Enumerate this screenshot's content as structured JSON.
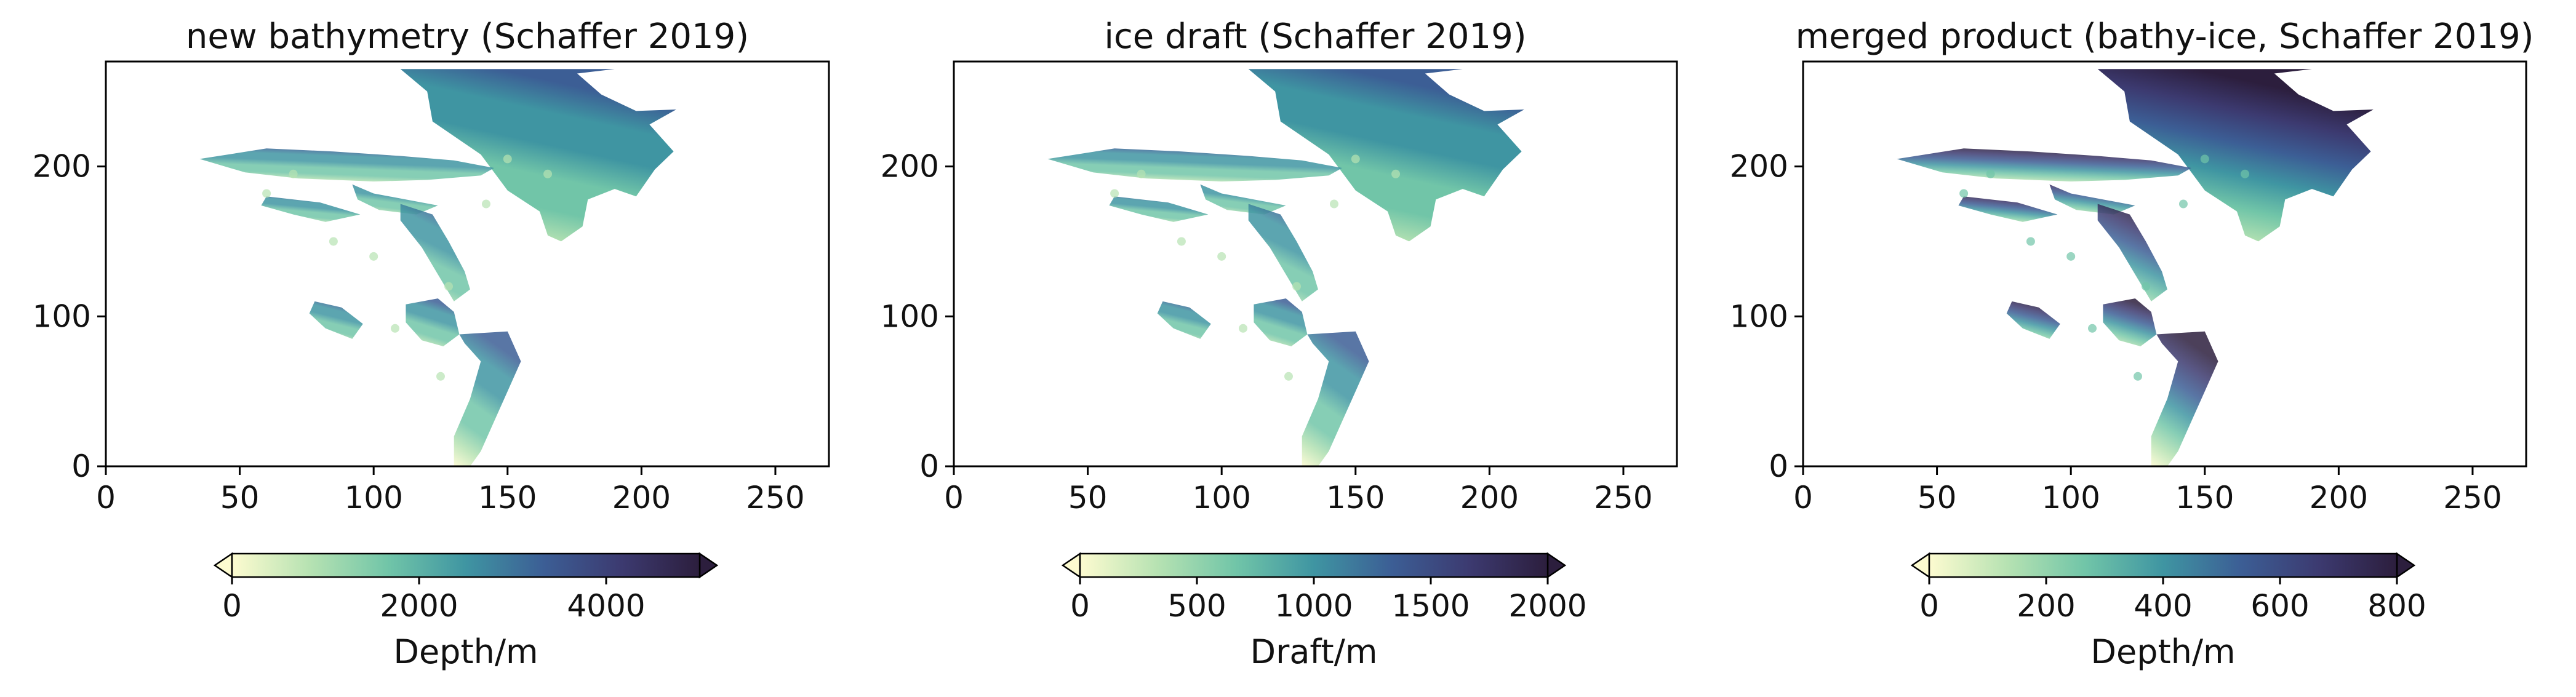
{
  "chart_data": [
    {
      "type": "heatmap",
      "title": "new bathymetry (Schaffer 2019)",
      "xlim": [
        0,
        270
      ],
      "ylim": [
        0,
        270
      ],
      "xticks": [
        0,
        50,
        100,
        150,
        200,
        250
      ],
      "yticks": [
        0,
        100,
        200
      ],
      "colorbar": {
        "label": "Depth/m",
        "range": [
          0,
          5000
        ],
        "ticks": [
          0,
          2000,
          4000
        ],
        "extend": "both",
        "colormap": [
          "#fdfbd0",
          "#b6e2b2",
          "#71c5a8",
          "#3f95a2",
          "#3c5e95",
          "#3c3a70",
          "#2c1e3d"
        ]
      }
    },
    {
      "type": "heatmap",
      "title": "ice draft (Schaffer 2019)",
      "xlim": [
        0,
        270
      ],
      "ylim": [
        0,
        270
      ],
      "xticks": [
        0,
        50,
        100,
        150,
        200,
        250
      ],
      "yticks": [
        0,
        100,
        200
      ],
      "colorbar": {
        "label": "Draft/m",
        "range": [
          0,
          2000
        ],
        "ticks": [
          0,
          500,
          1000,
          1500,
          2000
        ],
        "extend": "both",
        "colormap": [
          "#fdfbd0",
          "#b6e2b2",
          "#71c5a8",
          "#3f95a2",
          "#3c5e95",
          "#3c3a70",
          "#2c1e3d"
        ]
      }
    },
    {
      "type": "heatmap",
      "title": "merged product (bathy-ice, Schaffer 2019)",
      "xlim": [
        0,
        270
      ],
      "ylim": [
        0,
        270
      ],
      "xticks": [
        0,
        50,
        100,
        150,
        200,
        250
      ],
      "yticks": [
        0,
        100,
        200
      ],
      "colorbar": {
        "label": "Depth/m",
        "range": [
          0,
          800
        ],
        "ticks": [
          0,
          200,
          400,
          600,
          800
        ],
        "extend": "both",
        "colormap": [
          "#fdfbd0",
          "#b6e2b2",
          "#71c5a8",
          "#3f95a2",
          "#3c5e95",
          "#3c3a70",
          "#2c1e3d"
        ]
      }
    }
  ]
}
